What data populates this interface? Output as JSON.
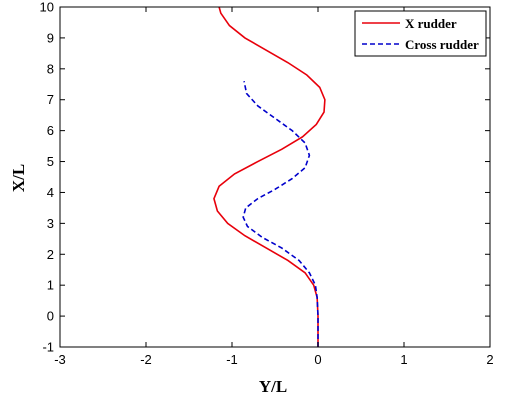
{
  "chart_data": {
    "type": "line",
    "xlabel": "Y/L",
    "ylabel": "X/L",
    "xlim": [
      -3,
      2
    ],
    "ylim": [
      -1,
      10
    ],
    "xticks": [
      "-3",
      "-2",
      "-1",
      "0",
      "1",
      "2"
    ],
    "yticks": [
      "-1",
      "0",
      "1",
      "2",
      "3",
      "4",
      "5",
      "6",
      "7",
      "8",
      "9",
      "10"
    ],
    "grid": false,
    "legend_position": "top-right",
    "series": [
      {
        "name": "X rudder",
        "color": "#e8000b",
        "dash": "solid",
        "points": [
          [
            0.0,
            -1.0
          ],
          [
            0.0,
            0.0
          ],
          [
            -0.01,
            0.6
          ],
          [
            -0.05,
            1.0
          ],
          [
            -0.15,
            1.4
          ],
          [
            -0.35,
            1.8
          ],
          [
            -0.6,
            2.2
          ],
          [
            -0.85,
            2.6
          ],
          [
            -1.05,
            3.0
          ],
          [
            -1.17,
            3.4
          ],
          [
            -1.21,
            3.8
          ],
          [
            -1.15,
            4.2
          ],
          [
            -0.97,
            4.6
          ],
          [
            -0.7,
            5.0
          ],
          [
            -0.42,
            5.4
          ],
          [
            -0.18,
            5.8
          ],
          [
            -0.02,
            6.2
          ],
          [
            0.07,
            6.6
          ],
          [
            0.08,
            7.0
          ],
          [
            0.02,
            7.4
          ],
          [
            -0.13,
            7.8
          ],
          [
            -0.35,
            8.2
          ],
          [
            -0.6,
            8.6
          ],
          [
            -0.85,
            9.0
          ],
          [
            -1.03,
            9.4
          ],
          [
            -1.13,
            9.8
          ],
          [
            -1.15,
            10.0
          ]
        ]
      },
      {
        "name": "Cross rudder",
        "color": "#0000cc",
        "dash": "dashed",
        "points": [
          [
            0.0,
            -1.0
          ],
          [
            0.0,
            0.0
          ],
          [
            -0.01,
            0.6
          ],
          [
            -0.03,
            1.0
          ],
          [
            -0.1,
            1.4
          ],
          [
            -0.22,
            1.8
          ],
          [
            -0.42,
            2.2
          ],
          [
            -0.65,
            2.55
          ],
          [
            -0.82,
            2.9
          ],
          [
            -0.87,
            3.2
          ],
          [
            -0.84,
            3.5
          ],
          [
            -0.7,
            3.8
          ],
          [
            -0.5,
            4.1
          ],
          [
            -0.3,
            4.45
          ],
          [
            -0.15,
            4.8
          ],
          [
            -0.1,
            5.2
          ],
          [
            -0.15,
            5.6
          ],
          [
            -0.3,
            6.0
          ],
          [
            -0.5,
            6.4
          ],
          [
            -0.7,
            6.8
          ],
          [
            -0.83,
            7.2
          ],
          [
            -0.86,
            7.6
          ]
        ]
      }
    ]
  }
}
